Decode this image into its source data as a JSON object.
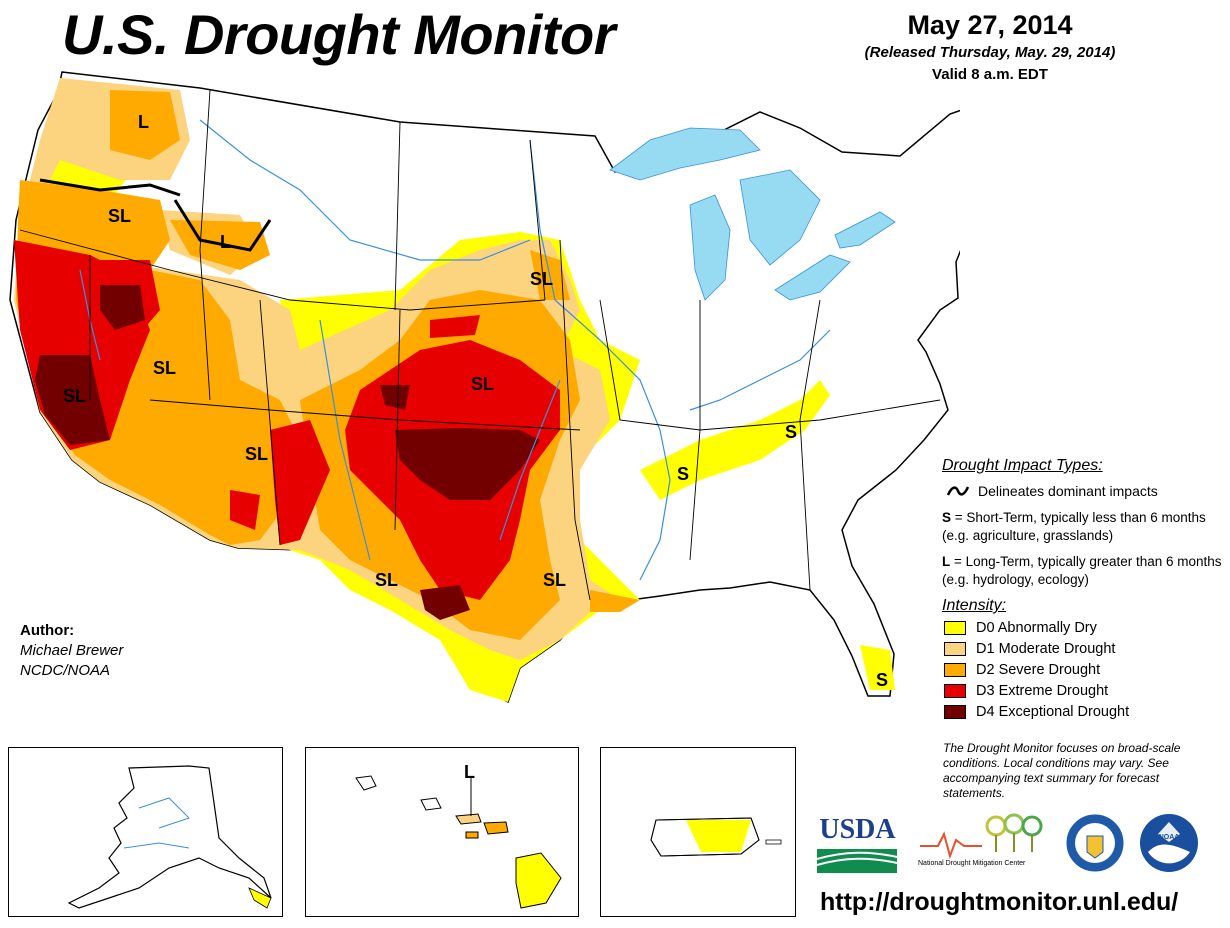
{
  "header": {
    "title": "U.S. Drought Monitor",
    "date": "May 27, 2014",
    "released": "(Released Thursday, May. 29, 2014)",
    "valid": "Valid 8 a.m. EDT"
  },
  "author": {
    "label": "Author:",
    "name": "Michael Brewer",
    "org": "NCDC/NOAA"
  },
  "legend": {
    "impact_title": "Drought Impact Types:",
    "impact_line": "Delineates dominant impacts",
    "short_term_key": "S",
    "short_term_text": " = Short-Term, typically less than 6 months (e.g. agriculture, grasslands)",
    "long_term_key": "L",
    "long_term_text": " = Long-Term, typically greater than 6 months (e.g. hydrology, ecology)",
    "intensity_title": "Intensity:",
    "levels": [
      {
        "label": "D0 Abnormally Dry",
        "color": "#ffff00"
      },
      {
        "label": "D1 Moderate Drought",
        "color": "#fcd37f"
      },
      {
        "label": "D2 Severe Drought",
        "color": "#ffaa00"
      },
      {
        "label": "D3 Extreme Drought",
        "color": "#e60000"
      },
      {
        "label": "D4 Exceptional Drought",
        "color": "#730000"
      }
    ]
  },
  "note": "The Drought Monitor focuses on broad-scale conditions. Local conditions may vary. See accompanying text summary for forecast statements.",
  "map_labels": {
    "wa": "L",
    "or": "SL",
    "id": "L",
    "nv": "SL",
    "ca": "SL",
    "az": "SL",
    "sd": "SL",
    "ks": "SL",
    "tx_w": "SL",
    "tx_e": "SL",
    "tn": "S",
    "ky": "S",
    "fl": "S",
    "hi": "L"
  },
  "logos": {
    "usda": "USDA",
    "ndmc": "National Drought Mitigation Center",
    "noaa": "NOAA"
  },
  "url": "http://droughtmonitor.unl.edu/",
  "colors": {
    "d0": "#ffff00",
    "d1": "#fcd37f",
    "d2": "#ffaa00",
    "d3": "#e60000",
    "d4": "#730000",
    "water": "#97dbf2",
    "river": "#3a8fe0",
    "county": "#a6a6a6"
  }
}
